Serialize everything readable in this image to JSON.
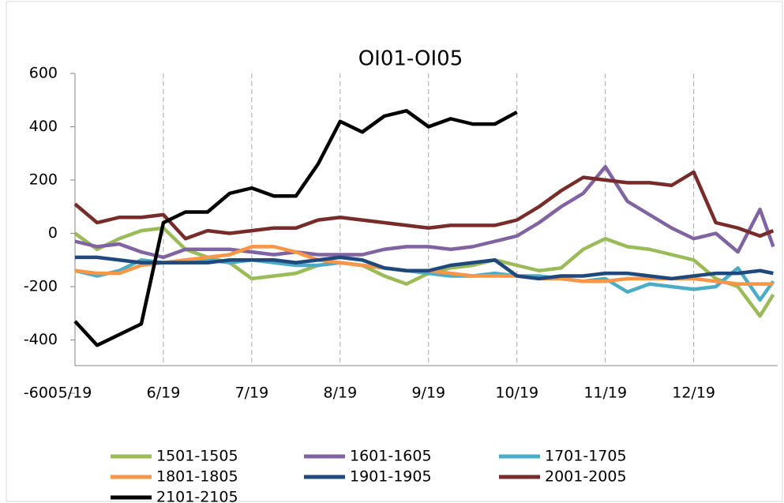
{
  "chart_data": {
    "type": "line",
    "title": "OI01-OI05",
    "x": [
      5,
      5.25,
      5.5,
      5.75,
      6,
      6.25,
      6.5,
      6.75,
      7,
      7.25,
      7.5,
      7.75,
      8,
      8.25,
      8.5,
      8.75,
      9,
      9.25,
      9.5,
      9.75,
      10,
      10.25,
      10.5,
      10.75,
      11,
      11.25,
      11.5,
      11.75,
      12,
      12.25,
      12.5,
      12.75,
      12.9
    ],
    "xlim": [
      5,
      12.95
    ],
    "xticks": [
      {
        "value": 5,
        "label": "5/19"
      },
      {
        "value": 6,
        "label": "6/19"
      },
      {
        "value": 7,
        "label": "7/19"
      },
      {
        "value": 8,
        "label": "8/19"
      },
      {
        "value": 9,
        "label": "9/19"
      },
      {
        "value": 10,
        "label": "10/19"
      },
      {
        "value": 11,
        "label": "11/19"
      },
      {
        "value": 12,
        "label": "12/19"
      }
    ],
    "ylim": [
      -600,
      600
    ],
    "yticks": [
      -600,
      -400,
      -200,
      0,
      200,
      400,
      600
    ],
    "grid": true,
    "legend": "bottom",
    "series": [
      {
        "name": "1501-1505",
        "color": "#9bbb59",
        "values": [
          0,
          -60,
          -20,
          10,
          20,
          -60,
          -90,
          -110,
          -170,
          -160,
          -150,
          -120,
          -110,
          -120,
          -160,
          -190,
          -150,
          -130,
          -120,
          -100,
          -120,
          -140,
          -130,
          -60,
          -20,
          -50,
          -60,
          -80,
          -100,
          -170,
          -200,
          -310,
          -230
        ]
      },
      {
        "name": "1601-1605",
        "color": "#8064a2",
        "values": [
          -30,
          -50,
          -40,
          -70,
          -90,
          -60,
          -60,
          -60,
          -70,
          -80,
          -70,
          -80,
          -80,
          -80,
          -60,
          -50,
          -50,
          -60,
          -50,
          -30,
          -10,
          40,
          100,
          150,
          250,
          120,
          70,
          20,
          -20,
          0,
          -70,
          90,
          -50
        ]
      },
      {
        "name": "1701-1705",
        "color": "#4bacc6",
        "values": [
          -140,
          -160,
          -140,
          -100,
          -110,
          -110,
          -100,
          -110,
          -100,
          -110,
          -120,
          -120,
          -110,
          -120,
          -130,
          -140,
          -150,
          -160,
          -160,
          -150,
          -160,
          -160,
          -170,
          -180,
          -170,
          -220,
          -190,
          -200,
          -210,
          -200,
          -130,
          -250,
          -180
        ]
      },
      {
        "name": "1801-1805",
        "color": "#f79646",
        "values": [
          -140,
          -150,
          -150,
          -120,
          -110,
          -100,
          -90,
          -80,
          -50,
          -50,
          -70,
          -100,
          -110,
          -120,
          -130,
          -140,
          -140,
          -150,
          -160,
          -160,
          -160,
          -170,
          -170,
          -180,
          -180,
          -170,
          -170,
          -170,
          -170,
          -180,
          -190,
          -190,
          -190
        ]
      },
      {
        "name": "1901-1905",
        "color": "#1f497d",
        "values": [
          -90,
          -90,
          -100,
          -110,
          -110,
          -110,
          -110,
          -100,
          -100,
          -100,
          -110,
          -100,
          -90,
          -100,
          -130,
          -140,
          -140,
          -120,
          -110,
          -100,
          -160,
          -170,
          -160,
          -160,
          -150,
          -150,
          -160,
          -170,
          -160,
          -150,
          -150,
          -140,
          -150
        ]
      },
      {
        "name": "2001-2005",
        "color": "#772c2a",
        "values": [
          110,
          40,
          60,
          60,
          70,
          -20,
          10,
          0,
          10,
          20,
          20,
          50,
          60,
          50,
          40,
          30,
          20,
          30,
          30,
          30,
          50,
          100,
          160,
          210,
          200,
          190,
          190,
          180,
          230,
          40,
          20,
          -10,
          10
        ]
      },
      {
        "name": "2101-2105",
        "color": "#000000",
        "values": [
          -330,
          -420,
          -380,
          -340,
          40,
          80,
          80,
          150,
          170,
          140,
          140,
          260,
          420,
          380,
          440,
          460,
          400,
          430,
          410,
          410,
          455,
          null,
          null,
          null,
          null,
          null,
          null,
          null,
          null,
          null,
          null,
          null,
          null
        ]
      }
    ]
  }
}
